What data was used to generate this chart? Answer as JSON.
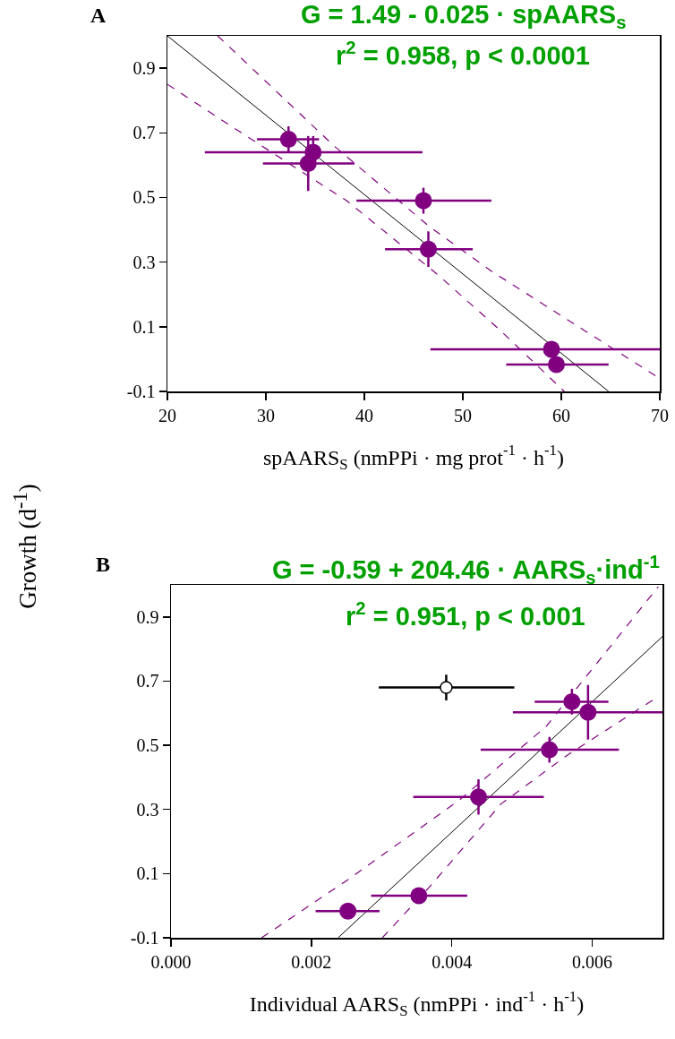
{
  "chart_data": [
    {
      "type": "scatter",
      "title": "G = 1.49 - 0.025 · spAARS$_{s}$",
      "subtitle": "r$^{2}$ = 0.958, p < 0.0001",
      "xlabel": "spAARS$_{S}$ (nmPPi · mg prot$^{-1}$ · h$^{-1}$)",
      "ylabel": "Growth (d$^{-1}$)",
      "annotations": [
        "A"
      ],
      "xlim": [
        20,
        70
      ],
      "xticks": [
        20,
        30,
        40,
        50,
        60,
        70
      ],
      "ylim": [
        -0.1,
        1.0
      ],
      "yticks": [
        -0.1,
        0.1,
        0.3,
        0.5,
        0.7,
        0.9
      ],
      "grid": false,
      "series": [
        {
          "marker": "circle",
          "color": "#800080",
          "x": [
            32.3,
            34.8,
            34.3,
            46.0,
            46.5,
            59.0,
            59.5
          ],
          "values": [
            0.68,
            0.64,
            0.605,
            0.49,
            0.34,
            0.03,
            -0.017
          ],
          "errors": [
            0.04,
            0.05,
            0.085,
            0.04,
            0.055,
            null,
            null
          ],
          "xerrors": [
            [
              29.1,
              35.4
            ],
            [
              23.8,
              45.9
            ],
            [
              29.7,
              39.0
            ],
            [
              39.2,
              52.9
            ],
            [
              42.1,
              51.0
            ],
            [
              46.7,
              70
            ],
            [
              54.4,
              64.8
            ]
          ]
        },
        {
          "type": "line",
          "color": "#000000",
          "line_style": "solid",
          "x": [
            20,
            64.8
          ],
          "values": [
            1.0,
            -0.1
          ]
        },
        {
          "type": "line",
          "color": "#800080",
          "line_style": "dashed",
          "x": [
            25.1,
            36.9,
            46.6,
            53.0,
            70
          ],
          "values": [
            1.0,
            0.66,
            0.41,
            0.27,
            -0.06
          ]
        },
        {
          "type": "line",
          "color": "#800080",
          "line_style": "dashed",
          "x": [
            20,
            26.5,
            38.2,
            47.5,
            53.9,
            60.3
          ],
          "values": [
            0.85,
            0.72,
            0.49,
            0.26,
            0.086,
            -0.1
          ]
        }
      ]
    },
    {
      "type": "scatter",
      "title": "G = -0.59 + 204.46 · AARS$_{s}$·ind$^{-1}$",
      "subtitle": "r$^{2}$ = 0.951, p < 0.001",
      "xlabel": "Individual AARS$_{S}$ (nmPPi · ind$^{-1}$ · h$^{-1}$)",
      "annotations": [
        "B"
      ],
      "xlim": [
        0,
        0.007
      ],
      "xticks": [
        {
          "value": 0,
          "label": "0.000"
        },
        {
          "value": 0.002,
          "label": "0.002"
        },
        {
          "value": 0.004,
          "label": "0.004"
        },
        {
          "value": 0.006,
          "label": "0.006"
        }
      ],
      "ylim": [
        -0.1,
        1.0
      ],
      "yticks": [
        -0.1,
        0.1,
        0.3,
        0.5,
        0.7,
        0.9
      ],
      "grid": false,
      "series": [
        {
          "marker": "circle",
          "color": "#ffffff",
          "x": [
            0.00392
          ],
          "values": [
            0.68
          ],
          "errors": [
            0.04
          ],
          "xerrors": [
            [
              0.00296,
              0.00489
            ]
          ]
        },
        {
          "marker": "circle",
          "color": "#800080",
          "x": [
            0.00571,
            0.00594,
            0.00539,
            0.00438,
            0.00353,
            0.00252
          ],
          "values": [
            0.636,
            0.603,
            0.486,
            0.339,
            0.031,
            -0.017
          ],
          "errors": [
            0.04,
            0.085,
            0.04,
            0.055,
            null,
            null
          ],
          "xerrors": [
            [
              0.00518,
              0.00623
            ],
            [
              0.00487,
              0.007
            ],
            [
              0.00441,
              0.00638
            ],
            [
              0.00345,
              0.00531
            ],
            [
              0.00285,
              0.00422
            ],
            [
              0.00206,
              0.00297
            ]
          ]
        },
        {
          "type": "line",
          "color": "#000000",
          "line_style": "solid",
          "x": [
            0.00238,
            0.007
          ],
          "values": [
            -0.1,
            0.839
          ]
        },
        {
          "type": "line",
          "color": "#800080",
          "line_style": "dashed",
          "x": [
            0.00129,
            0.0025,
            0.0041,
            0.00534,
            0.00694
          ],
          "values": [
            -0.1,
            0.078,
            0.328,
            0.558,
            0.994
          ]
        },
        {
          "type": "line",
          "color": "#800080",
          "line_style": "dashed",
          "x": [
            0.00301,
            0.00368,
            0.0047,
            0.00563,
            0.00687
          ],
          "values": [
            -0.1,
            0.058,
            0.317,
            0.467,
            0.642
          ]
        }
      ]
    }
  ]
}
